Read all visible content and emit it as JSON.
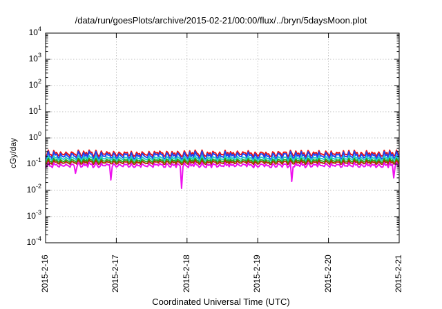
{
  "chart_data": {
    "type": "line",
    "title": "/data/run/goesPlots/archive/2015-02-21/00:00/flux/../bryn/5daysMoon.plot",
    "xlabel": "Coordinated Universal Time (UTC)",
    "ylabel": "cGy/day",
    "yscale": "log",
    "ylim": [
      0.0001,
      10000
    ],
    "xlim": [
      "2015-2-16",
      "2015-2-21"
    ],
    "grid": true,
    "x_ticks": [
      "2015-2-16",
      "2015-2-17",
      "2015-2-18",
      "2015-2-19",
      "2015-2-20",
      "2015-2-21"
    ],
    "y_ticks": [
      {
        "base": "10",
        "exp": "-4",
        "value": 0.0001
      },
      {
        "base": "10",
        "exp": "-3",
        "value": 0.001
      },
      {
        "base": "10",
        "exp": "-2",
        "value": 0.01
      },
      {
        "base": "10",
        "exp": "-1",
        "value": 0.1
      },
      {
        "base": "10",
        "exp": "0",
        "value": 1
      },
      {
        "base": "10",
        "exp": "1",
        "value": 10
      },
      {
        "base": "10",
        "exp": "2",
        "value": 100
      },
      {
        "base": "10",
        "exp": "3",
        "value": 1000
      },
      {
        "base": "10",
        "exp": "4",
        "value": 10000
      }
    ],
    "series": [
      {
        "color": "#ee1111",
        "level": 0.25,
        "amp": 0.45
      },
      {
        "color": "#2244ee",
        "level": 0.21,
        "amp": 0.55
      },
      {
        "color": "#22cccc",
        "level": 0.165,
        "amp": 0.35
      },
      {
        "color": "#22aa22",
        "level": 0.135,
        "amp": 0.3
      },
      {
        "color": "#aa3300",
        "level": 0.115,
        "amp": 0.3
      },
      {
        "color": "#ee11ee",
        "level": 0.09,
        "amp": 0.35,
        "dips": [
          {
            "day": 0.42,
            "value": 0.045
          },
          {
            "day": 0.93,
            "value": 0.025
          },
          {
            "day": 1.92,
            "value": 0.012
          },
          {
            "day": 3.48,
            "value": 0.022
          },
          {
            "day": 4.93,
            "value": 0.03
          }
        ]
      }
    ]
  }
}
